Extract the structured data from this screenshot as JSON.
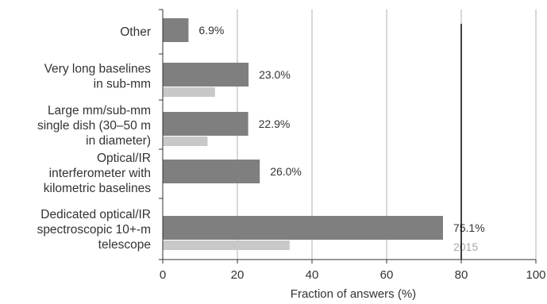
{
  "chart_data": {
    "type": "bar",
    "orientation": "horizontal",
    "xlabel": "Fraction of answers (%)",
    "xlim": [
      0,
      100
    ],
    "xticks": [
      0,
      20,
      40,
      60,
      80,
      100
    ],
    "grid": true,
    "categories": [
      [
        "Other"
      ],
      [
        "Very long baselines",
        "in sub-mm"
      ],
      [
        "Large mm/sub-mm",
        "single dish (30–50 m",
        "in diameter)"
      ],
      [
        "Optical/IR",
        "interferometer with",
        "kilometric baselines"
      ],
      [
        "Dedicated optical/IR",
        "spectroscopic 10+-m",
        "telescope"
      ]
    ],
    "series": [
      {
        "values": [
          6.9,
          23.0,
          22.9,
          26.0,
          75.1
        ],
        "labels": [
          "6.9%",
          "23.0%",
          "22.9%",
          "26.0%",
          "75.1%"
        ],
        "color": "#7f7f7f"
      },
      {
        "name": "2015",
        "values": [
          null,
          14,
          12,
          null,
          34
        ],
        "color": "#c8c8c8"
      }
    ],
    "reference_line": 80,
    "reference_line_color": "#000000",
    "gridline_color": "#b0b0b0",
    "text_color": "#333333",
    "legend_label_color": "#aaaaaa"
  }
}
